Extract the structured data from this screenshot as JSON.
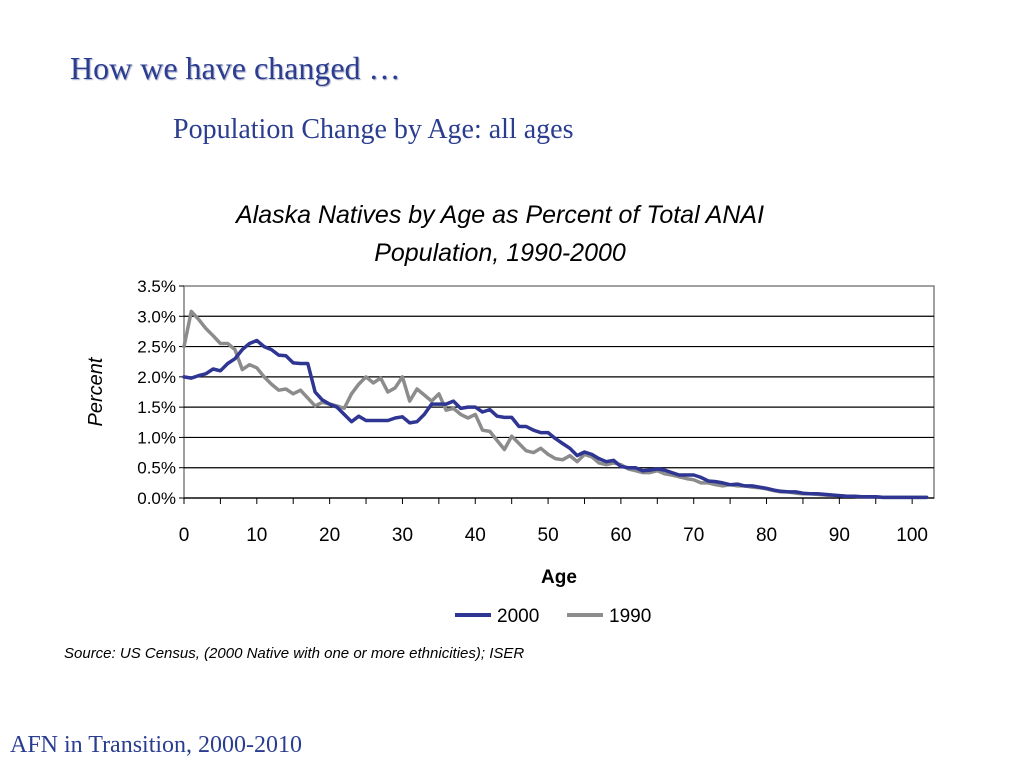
{
  "slide": {
    "title": "How we have changed …",
    "subtitle": "Population Change by Age:  all ages",
    "source": "Source:  US Census, (2000 Native with one or more ethnicities); ISER",
    "footer": "AFN in Transition, 2000-2010"
  },
  "colors": {
    "heading": "#2a3d8f",
    "series_2000": "#2e3592",
    "series_1990": "#8c8c8c",
    "gridline": "#000000",
    "plot_border": "#808080"
  },
  "chart_data": {
    "type": "line",
    "title_lines": [
      "Alaska Natives by Age as Percent of Total ANAI",
      "Population, 1990-2000"
    ],
    "xlabel": "Age",
    "ylabel": "Percent",
    "xlim": [
      0,
      103
    ],
    "ylim": [
      0,
      3.5
    ],
    "x_ticks": [
      0,
      10,
      20,
      30,
      40,
      50,
      60,
      70,
      80,
      90,
      100
    ],
    "y_ticks": [
      "0.0%",
      "0.5%",
      "1.0%",
      "1.5%",
      "2.0%",
      "2.5%",
      "3.0%",
      "3.5%"
    ],
    "grid": "horizontal",
    "legend_position": "bottom",
    "series": [
      {
        "name": "2000",
        "x": [
          0,
          1,
          2,
          3,
          4,
          5,
          6,
          7,
          8,
          9,
          10,
          11,
          12,
          13,
          14,
          15,
          16,
          17,
          18,
          19,
          20,
          21,
          22,
          23,
          24,
          25,
          26,
          27,
          28,
          29,
          30,
          31,
          32,
          33,
          34,
          35,
          36,
          37,
          38,
          39,
          40,
          41,
          42,
          43,
          44,
          45,
          46,
          47,
          48,
          49,
          50,
          51,
          52,
          53,
          54,
          55,
          56,
          57,
          58,
          59,
          60,
          61,
          62,
          63,
          64,
          65,
          66,
          67,
          68,
          69,
          70,
          71,
          72,
          73,
          74,
          75,
          76,
          77,
          78,
          79,
          80,
          81,
          82,
          83,
          84,
          85,
          86,
          87,
          88,
          89,
          90,
          91,
          92,
          93,
          94,
          95,
          96,
          97,
          98,
          99,
          100,
          101,
          102
        ],
        "values": [
          2.0,
          1.98,
          2.02,
          2.05,
          2.13,
          2.1,
          2.22,
          2.3,
          2.45,
          2.55,
          2.6,
          2.5,
          2.45,
          2.36,
          2.35,
          2.23,
          2.22,
          2.22,
          1.75,
          1.62,
          1.55,
          1.5,
          1.38,
          1.26,
          1.35,
          1.28,
          1.28,
          1.28,
          1.28,
          1.32,
          1.34,
          1.24,
          1.26,
          1.38,
          1.55,
          1.55,
          1.55,
          1.6,
          1.48,
          1.5,
          1.5,
          1.42,
          1.46,
          1.35,
          1.33,
          1.33,
          1.18,
          1.18,
          1.12,
          1.08,
          1.08,
          0.98,
          0.9,
          0.82,
          0.7,
          0.76,
          0.72,
          0.65,
          0.6,
          0.62,
          0.52,
          0.5,
          0.5,
          0.45,
          0.46,
          0.48,
          0.46,
          0.42,
          0.38,
          0.38,
          0.38,
          0.34,
          0.28,
          0.27,
          0.25,
          0.22,
          0.23,
          0.2,
          0.2,
          0.18,
          0.16,
          0.13,
          0.11,
          0.1,
          0.1,
          0.08,
          0.07,
          0.07,
          0.06,
          0.05,
          0.04,
          0.03,
          0.03,
          0.02,
          0.02,
          0.02,
          0.01,
          0.01,
          0.01,
          0.01,
          0.01,
          0.01,
          0.01
        ]
      },
      {
        "name": "1990",
        "x": [
          0,
          1,
          2,
          3,
          4,
          5,
          6,
          7,
          8,
          9,
          10,
          11,
          12,
          13,
          14,
          15,
          16,
          17,
          18,
          19,
          20,
          21,
          22,
          23,
          24,
          25,
          26,
          27,
          28,
          29,
          30,
          31,
          32,
          33,
          34,
          35,
          36,
          37,
          38,
          39,
          40,
          41,
          42,
          43,
          44,
          45,
          46,
          47,
          48,
          49,
          50,
          51,
          52,
          53,
          54,
          55,
          56,
          57,
          58,
          59,
          60,
          61,
          62,
          63,
          64,
          65,
          66,
          67,
          68,
          69,
          70,
          71,
          72,
          73,
          74,
          75,
          76,
          77,
          78,
          79,
          80,
          81,
          82,
          83,
          84,
          85,
          86,
          87,
          88,
          89,
          90,
          91,
          92,
          93,
          94,
          95,
          96,
          97,
          98,
          99,
          100,
          101,
          102
        ],
        "values": [
          2.5,
          3.08,
          2.95,
          2.8,
          2.68,
          2.55,
          2.55,
          2.45,
          2.12,
          2.2,
          2.15,
          2.0,
          1.88,
          1.78,
          1.8,
          1.72,
          1.78,
          1.65,
          1.52,
          1.58,
          1.55,
          1.52,
          1.48,
          1.72,
          1.88,
          2.0,
          1.9,
          1.98,
          1.75,
          1.82,
          2.0,
          1.6,
          1.8,
          1.7,
          1.6,
          1.72,
          1.45,
          1.48,
          1.38,
          1.32,
          1.38,
          1.12,
          1.1,
          0.95,
          0.8,
          1.02,
          0.9,
          0.78,
          0.75,
          0.82,
          0.72,
          0.65,
          0.63,
          0.7,
          0.6,
          0.72,
          0.68,
          0.58,
          0.55,
          0.58,
          0.55,
          0.48,
          0.45,
          0.42,
          0.42,
          0.45,
          0.4,
          0.38,
          0.35,
          0.32,
          0.3,
          0.25,
          0.25,
          0.22,
          0.2,
          0.22,
          0.2,
          0.2,
          0.18,
          0.17,
          0.15,
          0.12,
          0.1,
          0.1,
          0.08,
          0.07,
          0.07,
          0.06,
          0.05,
          0.04,
          0.04,
          0.03,
          0.03,
          0.02,
          0.02,
          0.02,
          0.01,
          0.01,
          0.01,
          0.01,
          0.01,
          0.01,
          0.01
        ]
      }
    ]
  }
}
